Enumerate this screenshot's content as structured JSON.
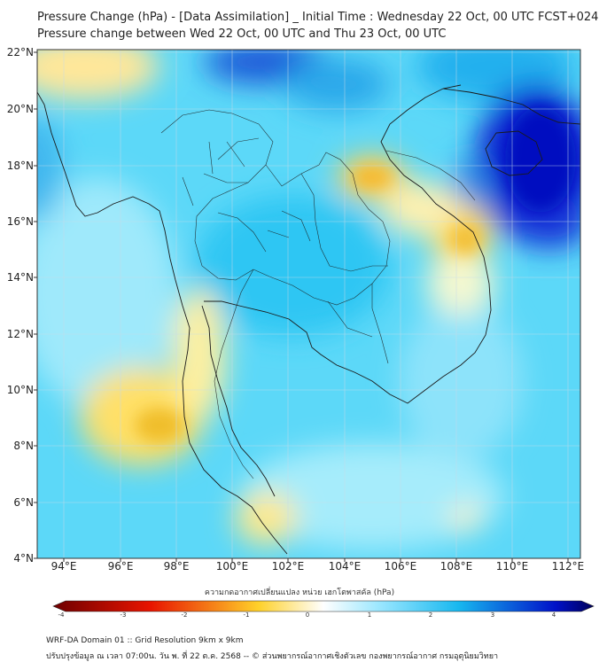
{
  "title": {
    "line1": "Pressure Change (hPa) - [Data Assimilation] _ Initial Time : Wednesday 22 Oct, 00 UTC FCST+024",
    "line2": "Pressure change between Wed 22 Oct, 00 UTC and Thu 23 Oct, 00 UTC"
  },
  "map": {
    "lat_labels": [
      "22°N",
      "20°N",
      "18°N",
      "16°N",
      "14°N",
      "12°N",
      "10°N",
      "8°N",
      "6°N",
      "4°N"
    ],
    "lon_labels": [
      "94°E",
      "96°E",
      "98°E",
      "100°E",
      "102°E",
      "104°E",
      "106°E",
      "108°E",
      "110°E",
      "112°E"
    ],
    "lat_range": [
      4,
      22.2
    ],
    "lon_range": [
      93,
      112.4
    ],
    "regions": {
      "strong_fall_gulf_of_tonkin": "dark-blue",
      "rise_central_laos_vietnam": "yellow-orange",
      "rise_andaman_sea": "yellow"
    }
  },
  "colorbar": {
    "label": "ความกดอากาศเปลี่ยนแปลง หน่วย เฮกโตพาสคัล (hPa)",
    "ticks": [
      "-4",
      "-3",
      "-2",
      "-1",
      "0",
      "1",
      "2",
      "3",
      "4"
    ],
    "range": [
      -4,
      4
    ],
    "colors": {
      "min": "#6e0000",
      "neg_mid": "#e81400",
      "neg_low": "#ffd12a",
      "zero": "#ffffff",
      "pos_low": "#9ee8ff",
      "pos_mid": "#18b8ef",
      "pos_high": "#0010c8",
      "max": "#00005a"
    }
  },
  "footer": {
    "line1": "WRF-DA Domain 01 :: Grid Resolution 9km x 9km",
    "line2": "ปรับปรุงข้อมูล ณ เวลา 07:00น. วัน พ. ที่ 22 ต.ค. 2568 -- © ส่วนพยากรณ์อากาศเชิงตัวเลข กองพยากรณ์อากาศ กรมอุตุนิยมวิทยา"
  }
}
